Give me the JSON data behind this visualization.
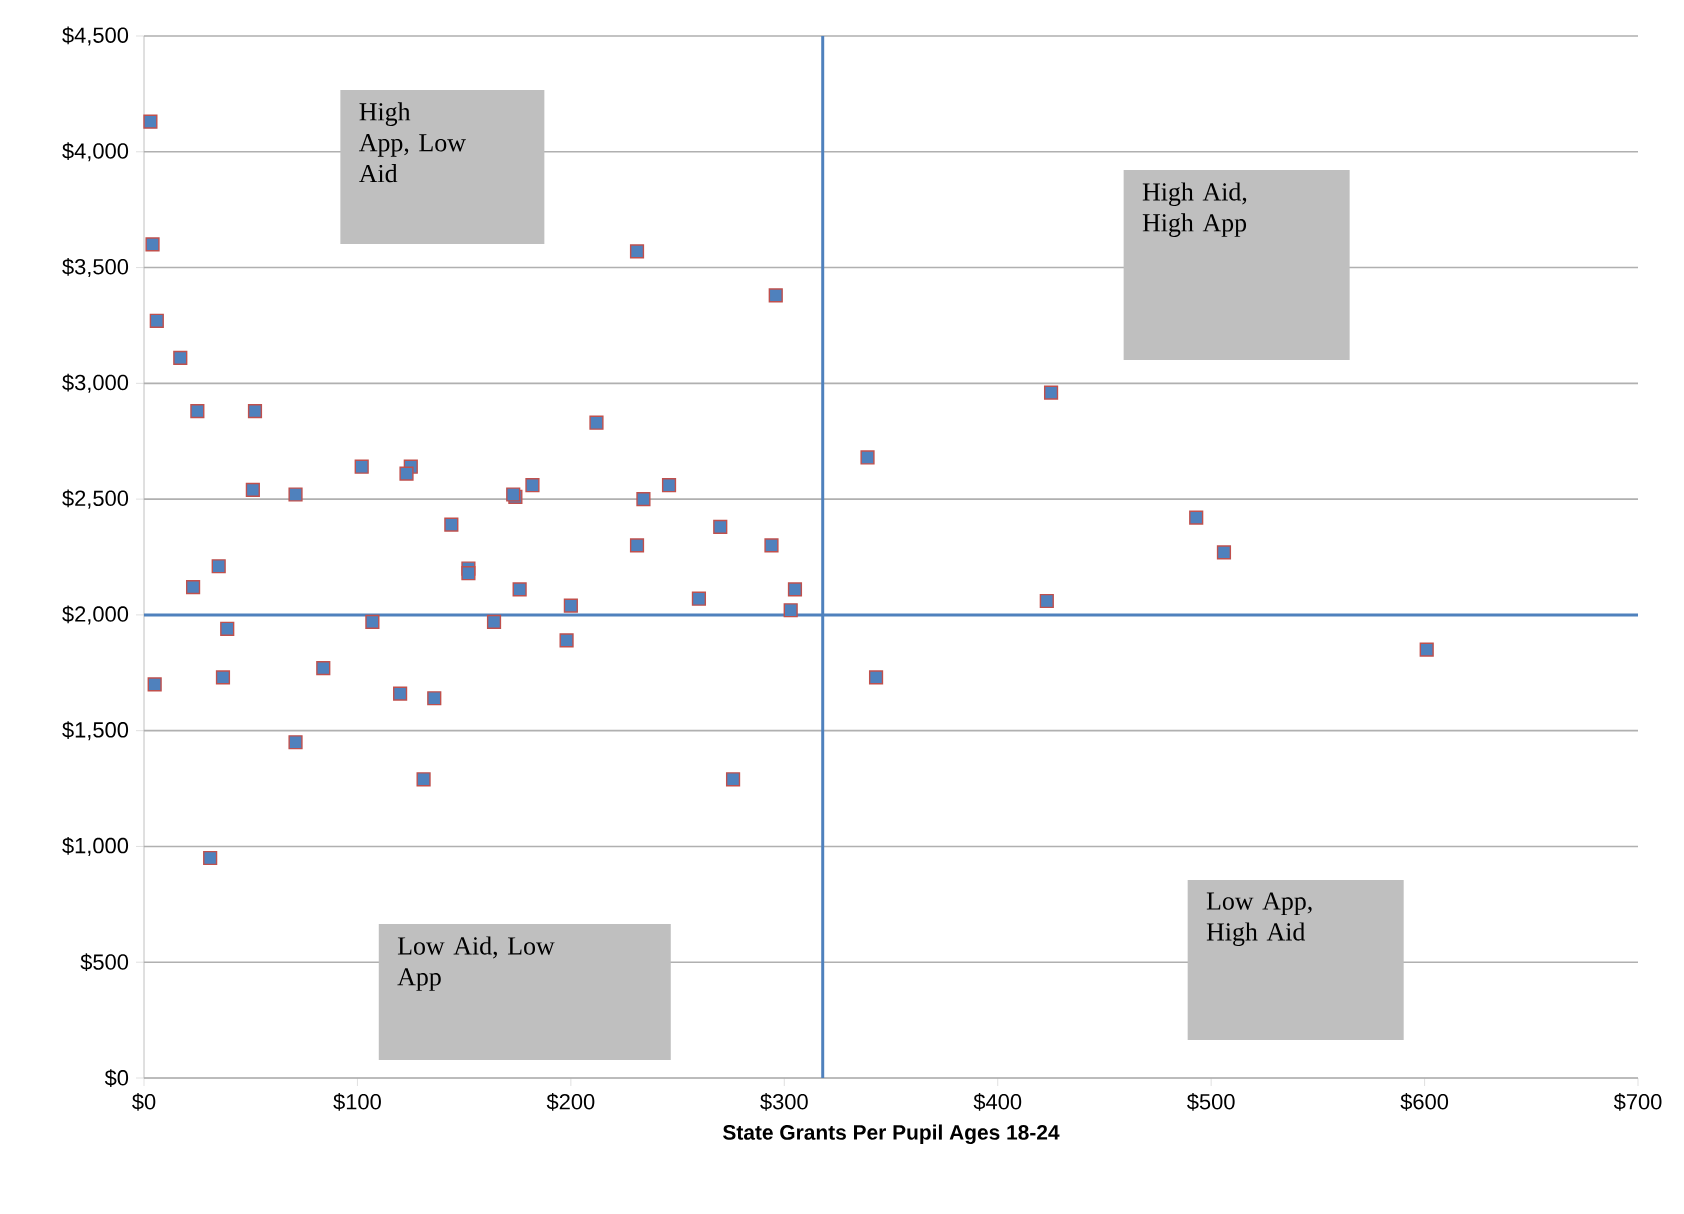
{
  "chart_data": {
    "type": "scatter",
    "xlabel": "State Grants Per Pupil Ages 18-24",
    "x": [
      3,
      4,
      6,
      17,
      25,
      52,
      51,
      71,
      102,
      125,
      123,
      144,
      23,
      35,
      39,
      37,
      5,
      31,
      71,
      84,
      107,
      120,
      136,
      131,
      152,
      152,
      164,
      174,
      173,
      182,
      176,
      231,
      296,
      212,
      200,
      198,
      234,
      246,
      231,
      270,
      294,
      260,
      305,
      303,
      276,
      339,
      425,
      493,
      506,
      423,
      343,
      601
    ],
    "series": [
      {
        "color": "#4f81bd",
        "values": [
          4130,
          3600,
          3270,
          3110,
          2880,
          2880,
          2540,
          2520,
          2640,
          2640,
          2610,
          2390,
          2120,
          2210,
          1940,
          1730,
          1700,
          950,
          1450,
          1770,
          1970,
          1660,
          1640,
          1290,
          2200,
          2180,
          1970,
          2510,
          2520,
          2560,
          2110,
          3570,
          3380,
          2830,
          2040,
          1890,
          2500,
          2560,
          2300,
          2380,
          2300,
          2070,
          2110,
          2020,
          1290,
          2680,
          2960,
          2420,
          2270,
          2060,
          1730,
          1850
        ]
      }
    ],
    "xlim": [
      0,
      700
    ],
    "xticks": [
      {
        "value": 0,
        "label": "$0"
      },
      {
        "value": 100,
        "label": "$100"
      },
      {
        "value": 200,
        "label": "$200"
      },
      {
        "value": 300,
        "label": "$300"
      },
      {
        "value": 400,
        "label": "$400"
      },
      {
        "value": 500,
        "label": "$500"
      },
      {
        "value": 600,
        "label": "$600"
      },
      {
        "value": 700,
        "label": "$700"
      }
    ],
    "ylim": [
      0,
      4500
    ],
    "yticks": [
      {
        "value": 0,
        "label": "$0"
      },
      {
        "value": 500,
        "label": "$500"
      },
      {
        "value": 1000,
        "label": "$1,000"
      },
      {
        "value": 1500,
        "label": "$1,500"
      },
      {
        "value": 2000,
        "label": "$2,000"
      },
      {
        "value": 2500,
        "label": "$2,500"
      },
      {
        "value": 3000,
        "label": "$3,000"
      },
      {
        "value": 3500,
        "label": "$3,500"
      },
      {
        "value": 4000,
        "label": "$4,000"
      },
      {
        "value": 4500,
        "label": "$4,500"
      }
    ],
    "grid": "y",
    "marker": "square",
    "ref_lines": [
      {
        "axis": "x",
        "value": 318,
        "color": "#4f81bd"
      },
      {
        "axis": "y",
        "value": 2000,
        "color": "#4f81bd"
      }
    ],
    "annotations": [
      "High App, Low Aid",
      "High Aid, High App",
      "Low Aid, Low App",
      "Low App, High Aid"
    ]
  }
}
